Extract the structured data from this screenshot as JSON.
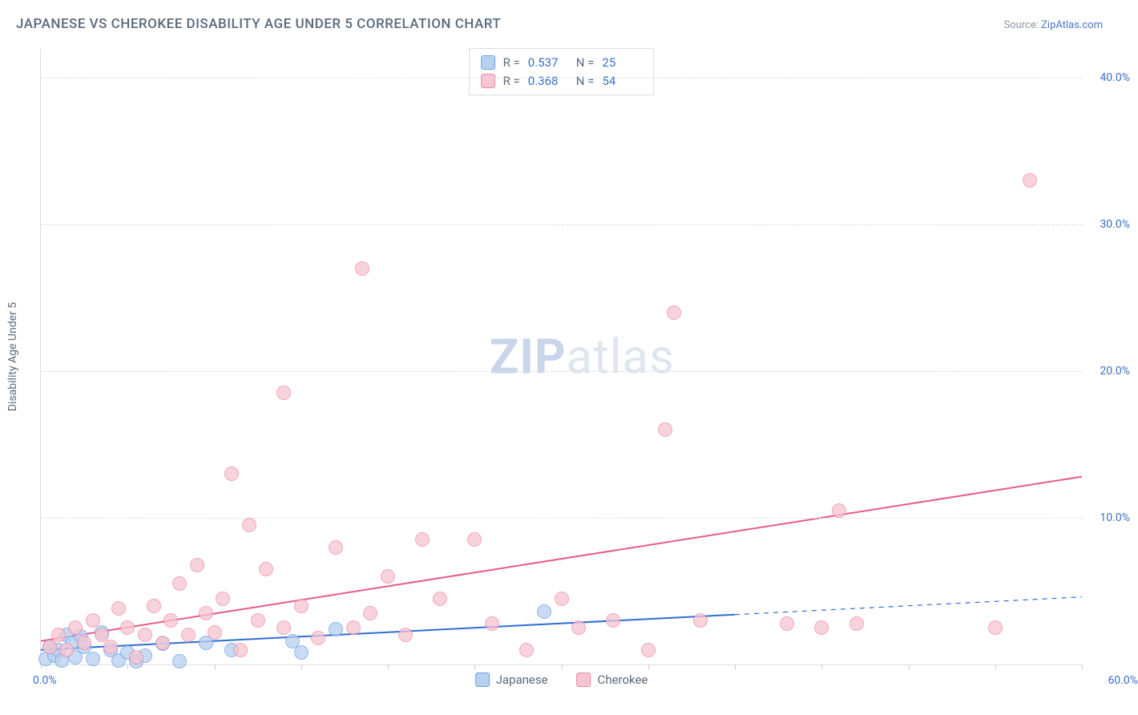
{
  "title": "JAPANESE VS CHEROKEE DISABILITY AGE UNDER 5 CORRELATION CHART",
  "source": {
    "label": "Source:",
    "link_text": "ZipAtlas.com"
  },
  "yaxis_title": "Disability Age Under 5",
  "watermark": {
    "bold": "ZIP",
    "light": "atlas"
  },
  "chart": {
    "type": "scatter-correlation",
    "background_color": "#ffffff",
    "grid_color": "#dce1e7",
    "axis_color": "#d8dde3",
    "tick_label_color": "#3b6fc9",
    "axis_title_color": "#5a6a7a",
    "xlim": [
      0,
      60
    ],
    "ylim": [
      0,
      42
    ],
    "xtick_step": 5,
    "xlabel_min": "0.0%",
    "xlabel_max": "60.0%",
    "yticks": [
      {
        "value": 10,
        "label": "10.0%"
      },
      {
        "value": 20,
        "label": "20.0%"
      },
      {
        "value": 30,
        "label": "30.0%"
      },
      {
        "value": 40,
        "label": "40.0%"
      }
    ],
    "marker_radius": 9,
    "marker_border_width": 1.5,
    "line_width": 2,
    "series": [
      {
        "name": "Japanese",
        "fill_color": "#b8d0f0",
        "stroke_color": "#6ca0e8",
        "line_color": "#2d6fd4",
        "R": "0.537",
        "N": "25",
        "trend": {
          "x1": 0,
          "y1": 1.0,
          "x2": 40,
          "y2": 3.4,
          "extrapolate_to": 60,
          "y_extrap": 4.6
        },
        "points": [
          [
            0.3,
            0.4
          ],
          [
            0.5,
            1.2
          ],
          [
            0.8,
            0.6
          ],
          [
            1.0,
            1.0
          ],
          [
            1.2,
            0.3
          ],
          [
            1.5,
            2.0
          ],
          [
            1.8,
            1.5
          ],
          [
            2.0,
            0.5
          ],
          [
            2.3,
            1.9
          ],
          [
            2.5,
            1.2
          ],
          [
            3.0,
            0.4
          ],
          [
            3.5,
            2.2
          ],
          [
            4.0,
            1.0
          ],
          [
            4.5,
            0.3
          ],
          [
            5.0,
            0.8
          ],
          [
            5.5,
            0.2
          ],
          [
            6.0,
            0.6
          ],
          [
            7.0,
            1.4
          ],
          [
            8.0,
            0.2
          ],
          [
            9.5,
            1.5
          ],
          [
            11.0,
            1.0
          ],
          [
            14.5,
            1.6
          ],
          [
            15.0,
            0.8
          ],
          [
            17.0,
            2.4
          ],
          [
            29.0,
            3.6
          ]
        ]
      },
      {
        "name": "Cherokee",
        "fill_color": "#f6c5d1",
        "stroke_color": "#ec8aa6",
        "line_color": "#e85a8a",
        "R": "0.368",
        "N": "54",
        "trend": {
          "x1": 0,
          "y1": 1.6,
          "x2": 60,
          "y2": 12.8
        },
        "points": [
          [
            0.5,
            1.2
          ],
          [
            1.0,
            2.0
          ],
          [
            1.5,
            1.0
          ],
          [
            2.0,
            2.5
          ],
          [
            2.5,
            1.5
          ],
          [
            3.0,
            3.0
          ],
          [
            3.5,
            2.0
          ],
          [
            4.0,
            1.2
          ],
          [
            4.5,
            3.8
          ],
          [
            5.0,
            2.5
          ],
          [
            5.5,
            0.5
          ],
          [
            6.0,
            2.0
          ],
          [
            6.5,
            4.0
          ],
          [
            7.0,
            1.5
          ],
          [
            7.5,
            3.0
          ],
          [
            8.0,
            5.5
          ],
          [
            8.5,
            2.0
          ],
          [
            9.0,
            6.8
          ],
          [
            9.5,
            3.5
          ],
          [
            10.0,
            2.2
          ],
          [
            10.5,
            4.5
          ],
          [
            11.0,
            13.0
          ],
          [
            11.5,
            1.0
          ],
          [
            12.0,
            9.5
          ],
          [
            12.5,
            3.0
          ],
          [
            13.0,
            6.5
          ],
          [
            14.0,
            2.5
          ],
          [
            15.0,
            4.0
          ],
          [
            16.0,
            1.8
          ],
          [
            17.0,
            8.0
          ],
          [
            18.0,
            2.5
          ],
          [
            18.5,
            27.0
          ],
          [
            19.0,
            3.5
          ],
          [
            14.0,
            18.5
          ],
          [
            20.0,
            6.0
          ],
          [
            21.0,
            2.0
          ],
          [
            22.0,
            8.5
          ],
          [
            23.0,
            4.5
          ],
          [
            25.0,
            8.5
          ],
          [
            26.0,
            2.8
          ],
          [
            28.0,
            1.0
          ],
          [
            30.0,
            4.5
          ],
          [
            31.0,
            2.5
          ],
          [
            33.0,
            3.0
          ],
          [
            35.0,
            1.0
          ],
          [
            36.0,
            16.0
          ],
          [
            36.5,
            24.0
          ],
          [
            43.0,
            2.8
          ],
          [
            45.0,
            2.5
          ],
          [
            46.0,
            10.5
          ],
          [
            47.0,
            2.8
          ],
          [
            55.0,
            2.5
          ],
          [
            57.0,
            33.0
          ],
          [
            38.0,
            3.0
          ]
        ]
      }
    ],
    "legend_series": [
      {
        "label": "Japanese",
        "fill": "#b8d0f0",
        "stroke": "#6ca0e8"
      },
      {
        "label": "Cherokee",
        "fill": "#f6c5d1",
        "stroke": "#ec8aa6"
      }
    ]
  }
}
